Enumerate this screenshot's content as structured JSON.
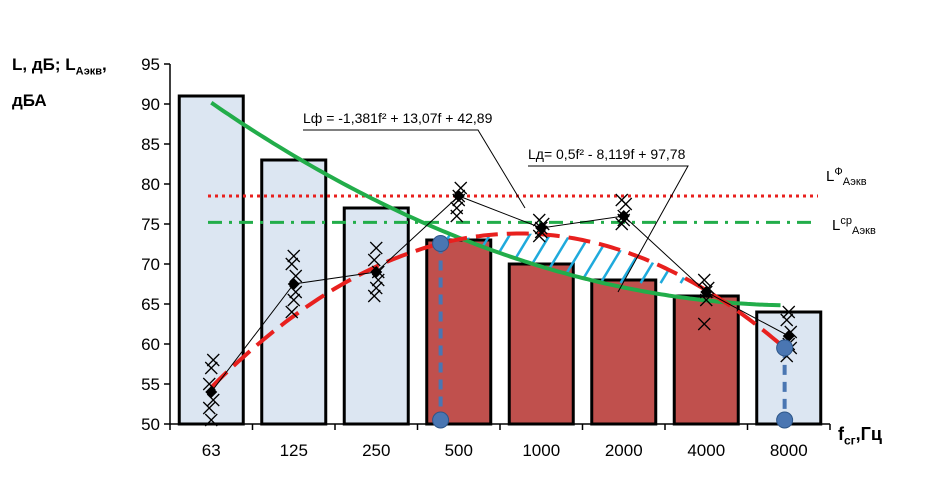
{
  "chart_data": {
    "type": "bar",
    "ylabel_main": "L, дБ; L",
    "ylabel_sub": "Аэкв",
    "ylabel_tail": ",",
    "ylabel_line2": "дБА",
    "xlabel_main": "f",
    "xlabel_sub": "сг",
    "xlabel_tail": ",Гц",
    "categories": [
      "63",
      "125",
      "250",
      "500",
      "1000",
      "2000",
      "4000",
      "8000"
    ],
    "ylim": [
      50,
      95
    ],
    "yticks": [
      "95",
      "90",
      "85",
      "80",
      "75",
      "70",
      "65",
      "60",
      "55",
      "50"
    ],
    "bars": [
      91,
      83,
      77,
      73,
      70,
      68,
      66,
      64
    ],
    "bar_colors": [
      "#dce6f2",
      "#dce6f2",
      "#dce6f2",
      "#c0504d",
      "#c0504d",
      "#c0504d",
      "#c0504d",
      "#dce6f2"
    ],
    "mean_series": [
      54,
      67.5,
      69,
      78.5,
      74.5,
      76,
      66.5,
      61
    ],
    "scatter": [
      [
        55,
        57,
        58,
        52,
        50.5,
        53
      ],
      [
        64,
        65.5,
        66.5,
        70,
        71,
        68.5
      ],
      [
        66,
        67,
        69,
        70.5,
        72,
        68
      ],
      [
        76,
        78,
        79.5,
        77,
        78.5
      ],
      [
        73.5,
        74.5,
        75,
        75.5,
        74
      ],
      [
        75,
        76,
        77.5,
        78,
        75.5
      ],
      [
        62.5,
        65.5,
        67,
        68,
        66.5
      ],
      [
        58.5,
        60,
        61.5,
        63,
        64,
        59.5
      ]
    ],
    "fit_fact": {
      "label": "Lф = -1,381f² + 13,07f + 42,89",
      "a": -1.381,
      "b": 13.07,
      "c": 42.89
    },
    "fit_norm": {
      "label": "Lд= 0,5f² - 8,119f + 97,78",
      "a": 0.5,
      "b": -8.119,
      "c": 97.78
    },
    "level_fact": {
      "value": 78.5,
      "label_main": "L",
      "label_sup": "Ф",
      "label_sub": "Аэкв"
    },
    "level_mean": {
      "value": 75.2,
      "label_main": "L",
      "label_sup": "ср",
      "label_sub": "Аэкв"
    },
    "intersections_x": [
      3.78,
      7.95
    ],
    "colors": {
      "fit_fact": "#e8201e",
      "fit_norm": "#22ad4a",
      "level_fact": "#e8201e",
      "level_mean": "#22ad4a",
      "hatch": "#1faadc",
      "marker": "#4a76b2"
    }
  }
}
